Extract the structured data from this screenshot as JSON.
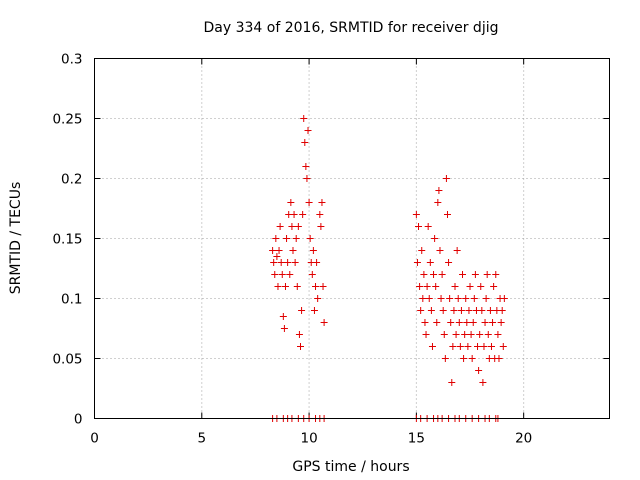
{
  "chart_data": {
    "type": "scatter",
    "title": "Day 334 of 2016, SRMTID for receiver djig",
    "xlabel": "GPS time / hours",
    "ylabel": "SRMTID / TECUs",
    "xlim": [
      0,
      24
    ],
    "ylim": [
      0,
      0.3
    ],
    "x_ticks": [
      0,
      5,
      10,
      15,
      20
    ],
    "x_tick_labels": [
      "0",
      "5",
      "10",
      "15",
      "20"
    ],
    "y_ticks": [
      0,
      0.05,
      0.1,
      0.15,
      0.2,
      0.25,
      0.3
    ],
    "y_tick_labels": [
      "0",
      "0.05",
      "0.1",
      "0.15",
      "0.2",
      "0.25",
      "0.3"
    ],
    "grid": true,
    "marker": "plus",
    "color": "#e00000",
    "points": [
      [
        8.3,
        0.14
      ],
      [
        8.35,
        0.13
      ],
      [
        8.4,
        0.12
      ],
      [
        8.45,
        0.15
      ],
      [
        8.5,
        0.135
      ],
      [
        8.55,
        0.11
      ],
      [
        8.6,
        0.14
      ],
      [
        8.65,
        0.16
      ],
      [
        8.7,
        0.13
      ],
      [
        8.75,
        0.12
      ],
      [
        8.8,
        0.085
      ],
      [
        8.85,
        0.075
      ],
      [
        8.9,
        0.11
      ],
      [
        8.95,
        0.15
      ],
      [
        9.0,
        0.13
      ],
      [
        9.05,
        0.17
      ],
      [
        9.1,
        0.12
      ],
      [
        9.15,
        0.18
      ],
      [
        9.2,
        0.16
      ],
      [
        9.25,
        0.14
      ],
      [
        9.3,
        0.17
      ],
      [
        9.35,
        0.13
      ],
      [
        9.4,
        0.15
      ],
      [
        9.45,
        0.11
      ],
      [
        9.5,
        0.16
      ],
      [
        9.55,
        0.07
      ],
      [
        9.6,
        0.06
      ],
      [
        9.65,
        0.09
      ],
      [
        9.7,
        0.17
      ],
      [
        9.75,
        0.25
      ],
      [
        9.8,
        0.23
      ],
      [
        9.85,
        0.21
      ],
      [
        9.9,
        0.2
      ],
      [
        9.95,
        0.24
      ],
      [
        10.0,
        0.18
      ],
      [
        10.05,
        0.15
      ],
      [
        10.1,
        0.13
      ],
      [
        10.15,
        0.12
      ],
      [
        10.2,
        0.14
      ],
      [
        10.25,
        0.09
      ],
      [
        10.3,
        0.11
      ],
      [
        10.35,
        0.13
      ],
      [
        10.4,
        0.1
      ],
      [
        10.5,
        0.17
      ],
      [
        10.55,
        0.16
      ],
      [
        10.6,
        0.18
      ],
      [
        10.65,
        0.11
      ],
      [
        10.7,
        0.08
      ],
      [
        15.0,
        0.17
      ],
      [
        15.05,
        0.13
      ],
      [
        15.1,
        0.16
      ],
      [
        15.15,
        0.11
      ],
      [
        15.2,
        0.09
      ],
      [
        15.25,
        0.14
      ],
      [
        15.3,
        0.1
      ],
      [
        15.35,
        0.12
      ],
      [
        15.4,
        0.08
      ],
      [
        15.45,
        0.07
      ],
      [
        15.5,
        0.11
      ],
      [
        15.55,
        0.16
      ],
      [
        15.6,
        0.1
      ],
      [
        15.65,
        0.13
      ],
      [
        15.7,
        0.09
      ],
      [
        15.75,
        0.06
      ],
      [
        15.8,
        0.12
      ],
      [
        15.85,
        0.15
      ],
      [
        15.9,
        0.11
      ],
      [
        15.95,
        0.08
      ],
      [
        16.0,
        0.18
      ],
      [
        16.05,
        0.19
      ],
      [
        16.1,
        0.14
      ],
      [
        16.15,
        0.1
      ],
      [
        16.2,
        0.12
      ],
      [
        16.25,
        0.09
      ],
      [
        16.3,
        0.07
      ],
      [
        16.35,
        0.05
      ],
      [
        16.4,
        0.2
      ],
      [
        16.45,
        0.17
      ],
      [
        16.5,
        0.13
      ],
      [
        16.55,
        0.1
      ],
      [
        16.6,
        0.08
      ],
      [
        16.65,
        0.03
      ],
      [
        16.7,
        0.06
      ],
      [
        16.75,
        0.09
      ],
      [
        16.8,
        0.11
      ],
      [
        16.85,
        0.07
      ],
      [
        16.9,
        0.14
      ],
      [
        16.95,
        0.1
      ],
      [
        17.0,
        0.08
      ],
      [
        17.05,
        0.06
      ],
      [
        17.1,
        0.09
      ],
      [
        17.15,
        0.12
      ],
      [
        17.2,
        0.05
      ],
      [
        17.25,
        0.07
      ],
      [
        17.3,
        0.1
      ],
      [
        17.35,
        0.08
      ],
      [
        17.4,
        0.06
      ],
      [
        17.45,
        0.09
      ],
      [
        17.5,
        0.11
      ],
      [
        17.55,
        0.07
      ],
      [
        17.6,
        0.05
      ],
      [
        17.65,
        0.08
      ],
      [
        17.7,
        0.1
      ],
      [
        17.75,
        0.12
      ],
      [
        17.8,
        0.09
      ],
      [
        17.85,
        0.06
      ],
      [
        17.9,
        0.04
      ],
      [
        17.95,
        0.07
      ],
      [
        18.0,
        0.11
      ],
      [
        18.05,
        0.09
      ],
      [
        18.1,
        0.03
      ],
      [
        18.15,
        0.06
      ],
      [
        18.2,
        0.08
      ],
      [
        18.25,
        0.1
      ],
      [
        18.3,
        0.12
      ],
      [
        18.35,
        0.07
      ],
      [
        18.4,
        0.05
      ],
      [
        18.45,
        0.09
      ],
      [
        18.5,
        0.06
      ],
      [
        18.55,
        0.08
      ],
      [
        18.6,
        0.11
      ],
      [
        18.65,
        0.05
      ],
      [
        18.7,
        0.12
      ],
      [
        18.75,
        0.09
      ],
      [
        18.8,
        0.07
      ],
      [
        18.85,
        0.05
      ],
      [
        18.9,
        0.1
      ],
      [
        18.95,
        0.08
      ],
      [
        19.0,
        0.09
      ],
      [
        19.05,
        0.06
      ],
      [
        19.1,
        0.1
      ]
    ],
    "zero_points_x": [
      8.3,
      8.5,
      8.8,
      9.0,
      9.2,
      9.5,
      9.75,
      10.0,
      10.3,
      10.5,
      10.7,
      15.0,
      15.2,
      15.5,
      15.8,
      16.0,
      16.2,
      16.5,
      16.8,
      17.0,
      17.3,
      17.6,
      17.9,
      18.2,
      18.4,
      18.7,
      18.8
    ]
  }
}
